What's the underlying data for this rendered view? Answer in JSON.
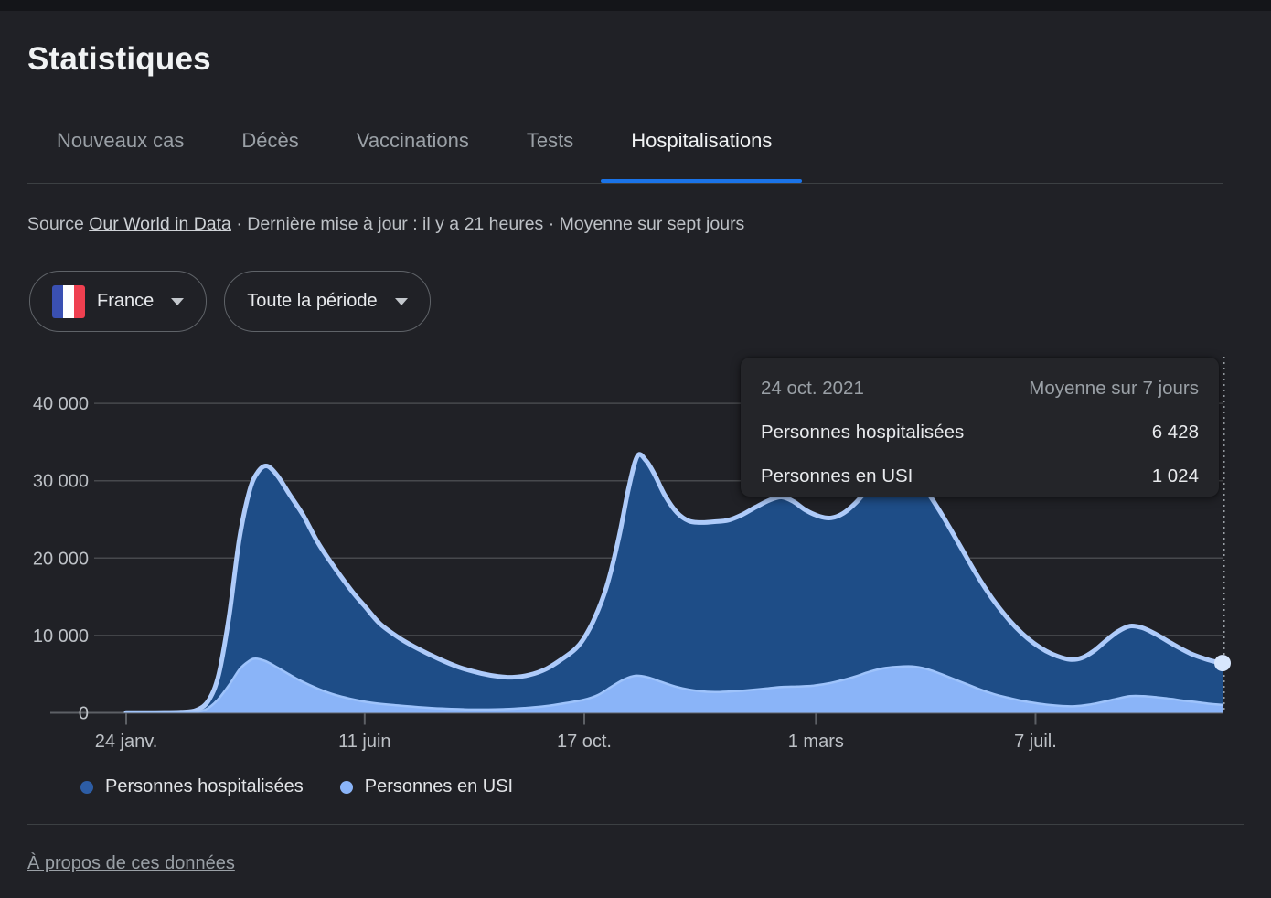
{
  "page": {
    "title": "Statistiques"
  },
  "colors": {
    "accent": "#1a73e8",
    "page_bg": "#202126",
    "grid": "#47494d",
    "baseline": "#5d6065",
    "axis_text": "#bdc1c6",
    "muted_text": "#9aa0a6",
    "primary_text": "#e8eaed",
    "hover_line": "#9aa0a6",
    "end_dot": "#d7e6fd",
    "flag_stripes": [
      "#3a50b2",
      "#ffffff",
      "#ef4050"
    ]
  },
  "tabs": {
    "items": [
      {
        "label": "Nouveaux cas",
        "active": false
      },
      {
        "label": "Décès",
        "active": false
      },
      {
        "label": "Vaccinations",
        "active": false
      },
      {
        "label": "Tests",
        "active": false
      },
      {
        "label": "Hospitalisations",
        "active": true
      }
    ]
  },
  "source": {
    "prefix": "Source ",
    "link_label": "Our World in Data",
    "rest": " · Dernière mise à jour : il y a 21 heures · Moyenne sur sept jours"
  },
  "filters": {
    "country": {
      "label": "France",
      "flag": "france-flag"
    },
    "period": {
      "label": "Toute la période"
    }
  },
  "tooltip": {
    "date": "24 oct. 2021",
    "avg_label": "Moyenne sur 7 jours",
    "rows": [
      {
        "label": "Personnes hospitalisées",
        "value": "6 428"
      },
      {
        "label": "Personnes en USI",
        "value": "1 024"
      }
    ]
  },
  "legend": [
    {
      "label": "Personnes hospitalisées",
      "color": "#2d5da5"
    },
    {
      "label": "Personnes en USI",
      "color": "#8ab4f8"
    }
  ],
  "about_link": "À propos de ces données",
  "chart_data": {
    "type": "area",
    "x_type": "time",
    "x_range": [
      "2020-01-24",
      "2021-10-24"
    ],
    "ylim": [
      0,
      40000
    ],
    "grid": true,
    "legend_position": "bottom",
    "y_ticks": [
      {
        "v": 0,
        "label": "0"
      },
      {
        "v": 10000,
        "label": "10 000"
      },
      {
        "v": 20000,
        "label": "20 000"
      },
      {
        "v": 30000,
        "label": "30 000"
      },
      {
        "v": 40000,
        "label": "40 000"
      }
    ],
    "x_ticks": [
      {
        "d": "2020-01-24",
        "label": "24 janv."
      },
      {
        "d": "2020-06-11",
        "label": "11 juin"
      },
      {
        "d": "2020-10-17",
        "label": "17 oct."
      },
      {
        "d": "2021-03-01",
        "label": "1 mars"
      },
      {
        "d": "2021-07-07",
        "label": "7 juil."
      }
    ],
    "series": [
      {
        "name": "Personnes hospitalisées",
        "fill": "#1e4d87",
        "stroke": "#aecbfa",
        "stroke_width": 5,
        "points": [
          [
            "2020-01-24",
            30
          ],
          [
            "2020-02-10",
            40
          ],
          [
            "2020-02-25",
            80
          ],
          [
            "2020-03-05",
            350
          ],
          [
            "2020-03-12",
            1600
          ],
          [
            "2020-03-18",
            5000
          ],
          [
            "2020-03-24",
            12500
          ],
          [
            "2020-03-30",
            22500
          ],
          [
            "2020-04-05",
            28800
          ],
          [
            "2020-04-10",
            31200
          ],
          [
            "2020-04-15",
            31900
          ],
          [
            "2020-04-21",
            30700
          ],
          [
            "2020-04-28",
            28300
          ],
          [
            "2020-05-06",
            25600
          ],
          [
            "2020-05-15",
            21900
          ],
          [
            "2020-05-25",
            18600
          ],
          [
            "2020-06-04",
            15600
          ],
          [
            "2020-06-11",
            13800
          ],
          [
            "2020-06-20",
            11500
          ],
          [
            "2020-07-01",
            9700
          ],
          [
            "2020-07-12",
            8300
          ],
          [
            "2020-07-24",
            7000
          ],
          [
            "2020-08-05",
            5900
          ],
          [
            "2020-08-18",
            5100
          ],
          [
            "2020-08-28",
            4700
          ],
          [
            "2020-09-05",
            4600
          ],
          [
            "2020-09-15",
            4900
          ],
          [
            "2020-09-25",
            5700
          ],
          [
            "2020-10-05",
            7100
          ],
          [
            "2020-10-12",
            8300
          ],
          [
            "2020-10-17",
            9700
          ],
          [
            "2020-10-23",
            12200
          ],
          [
            "2020-10-30",
            16300
          ],
          [
            "2020-11-06",
            22500
          ],
          [
            "2020-11-12",
            29200
          ],
          [
            "2020-11-17",
            33200
          ],
          [
            "2020-11-22",
            32600
          ],
          [
            "2020-11-27",
            30800
          ],
          [
            "2020-12-03",
            28100
          ],
          [
            "2020-12-10",
            25900
          ],
          [
            "2020-12-17",
            24800
          ],
          [
            "2020-12-24",
            24600
          ],
          [
            "2021-01-01",
            24700
          ],
          [
            "2021-01-09",
            24900
          ],
          [
            "2021-01-17",
            25600
          ],
          [
            "2021-01-25",
            26600
          ],
          [
            "2021-02-02",
            27500
          ],
          [
            "2021-02-09",
            27900
          ],
          [
            "2021-02-16",
            27300
          ],
          [
            "2021-02-23",
            26200
          ],
          [
            "2021-03-03",
            25400
          ],
          [
            "2021-03-10",
            25200
          ],
          [
            "2021-03-17",
            25800
          ],
          [
            "2021-03-24",
            27100
          ],
          [
            "2021-03-31",
            28800
          ],
          [
            "2021-04-07",
            30100
          ],
          [
            "2021-04-14",
            30600
          ],
          [
            "2021-04-20",
            30700
          ],
          [
            "2021-04-27",
            30200
          ],
          [
            "2021-05-04",
            28800
          ],
          [
            "2021-05-11",
            26500
          ],
          [
            "2021-05-18",
            23900
          ],
          [
            "2021-05-25",
            21200
          ],
          [
            "2021-06-01",
            18500
          ],
          [
            "2021-06-08",
            16000
          ],
          [
            "2021-06-15",
            13800
          ],
          [
            "2021-06-22",
            11900
          ],
          [
            "2021-06-29",
            10300
          ],
          [
            "2021-07-06",
            9000
          ],
          [
            "2021-07-13",
            8000
          ],
          [
            "2021-07-20",
            7300
          ],
          [
            "2021-07-27",
            6900
          ],
          [
            "2021-08-03",
            7100
          ],
          [
            "2021-08-10",
            8000
          ],
          [
            "2021-08-17",
            9300
          ],
          [
            "2021-08-24",
            10500
          ],
          [
            "2021-08-31",
            11200
          ],
          [
            "2021-09-07",
            11000
          ],
          [
            "2021-09-14",
            10300
          ],
          [
            "2021-09-21",
            9400
          ],
          [
            "2021-09-28",
            8500
          ],
          [
            "2021-10-05",
            7700
          ],
          [
            "2021-10-12",
            7100
          ],
          [
            "2021-10-18",
            6700
          ],
          [
            "2021-10-24",
            6428
          ]
        ]
      },
      {
        "name": "Personnes en USI",
        "fill": "#8ab4f8",
        "stroke": "#9ec3fb",
        "stroke_width": 2.5,
        "points": [
          [
            "2020-01-24",
            5
          ],
          [
            "2020-02-15",
            15
          ],
          [
            "2020-03-01",
            50
          ],
          [
            "2020-03-10",
            400
          ],
          [
            "2020-03-17",
            1600
          ],
          [
            "2020-03-24",
            3600
          ],
          [
            "2020-03-30",
            5600
          ],
          [
            "2020-04-04",
            6600
          ],
          [
            "2020-04-08",
            7000
          ],
          [
            "2020-04-14",
            6700
          ],
          [
            "2020-04-20",
            6000
          ],
          [
            "2020-04-27",
            5100
          ],
          [
            "2020-05-05",
            4100
          ],
          [
            "2020-05-15",
            3100
          ],
          [
            "2020-05-25",
            2300
          ],
          [
            "2020-06-05",
            1700
          ],
          [
            "2020-06-15",
            1300
          ],
          [
            "2020-06-28",
            1000
          ],
          [
            "2020-07-12",
            750
          ],
          [
            "2020-07-26",
            550
          ],
          [
            "2020-08-08",
            450
          ],
          [
            "2020-08-20",
            430
          ],
          [
            "2020-09-01",
            480
          ],
          [
            "2020-09-12",
            620
          ],
          [
            "2020-09-24",
            850
          ],
          [
            "2020-10-06",
            1250
          ],
          [
            "2020-10-17",
            1700
          ],
          [
            "2020-10-25",
            2300
          ],
          [
            "2020-11-02",
            3400
          ],
          [
            "2020-11-09",
            4300
          ],
          [
            "2020-11-16",
            4800
          ],
          [
            "2020-11-23",
            4600
          ],
          [
            "2020-12-01",
            4000
          ],
          [
            "2020-12-09",
            3400
          ],
          [
            "2020-12-17",
            3000
          ],
          [
            "2020-12-26",
            2750
          ],
          [
            "2021-01-04",
            2700
          ],
          [
            "2021-01-13",
            2800
          ],
          [
            "2021-01-22",
            2950
          ],
          [
            "2021-01-31",
            3150
          ],
          [
            "2021-02-09",
            3350
          ],
          [
            "2021-02-18",
            3400
          ],
          [
            "2021-02-27",
            3500
          ],
          [
            "2021-03-08",
            3800
          ],
          [
            "2021-03-16",
            4200
          ],
          [
            "2021-03-24",
            4700
          ],
          [
            "2021-04-01",
            5300
          ],
          [
            "2021-04-09",
            5750
          ],
          [
            "2021-04-17",
            5950
          ],
          [
            "2021-04-26",
            6000
          ],
          [
            "2021-05-04",
            5700
          ],
          [
            "2021-05-12",
            5100
          ],
          [
            "2021-05-20",
            4400
          ],
          [
            "2021-05-28",
            3700
          ],
          [
            "2021-06-05",
            3000
          ],
          [
            "2021-06-13",
            2400
          ],
          [
            "2021-06-21",
            1950
          ],
          [
            "2021-06-29",
            1550
          ],
          [
            "2021-07-07",
            1250
          ],
          [
            "2021-07-15",
            1020
          ],
          [
            "2021-07-23",
            880
          ],
          [
            "2021-07-30",
            860
          ],
          [
            "2021-08-07",
            1050
          ],
          [
            "2021-08-15",
            1400
          ],
          [
            "2021-08-23",
            1800
          ],
          [
            "2021-08-31",
            2150
          ],
          [
            "2021-09-08",
            2150
          ],
          [
            "2021-09-16",
            2000
          ],
          [
            "2021-09-24",
            1800
          ],
          [
            "2021-10-02",
            1550
          ],
          [
            "2021-10-10",
            1350
          ],
          [
            "2021-10-17",
            1150
          ],
          [
            "2021-10-24",
            1024
          ]
        ]
      }
    ],
    "hover_line_date": "2021-10-24",
    "end_marker": {
      "d": "2021-10-24",
      "v": 6428
    }
  }
}
